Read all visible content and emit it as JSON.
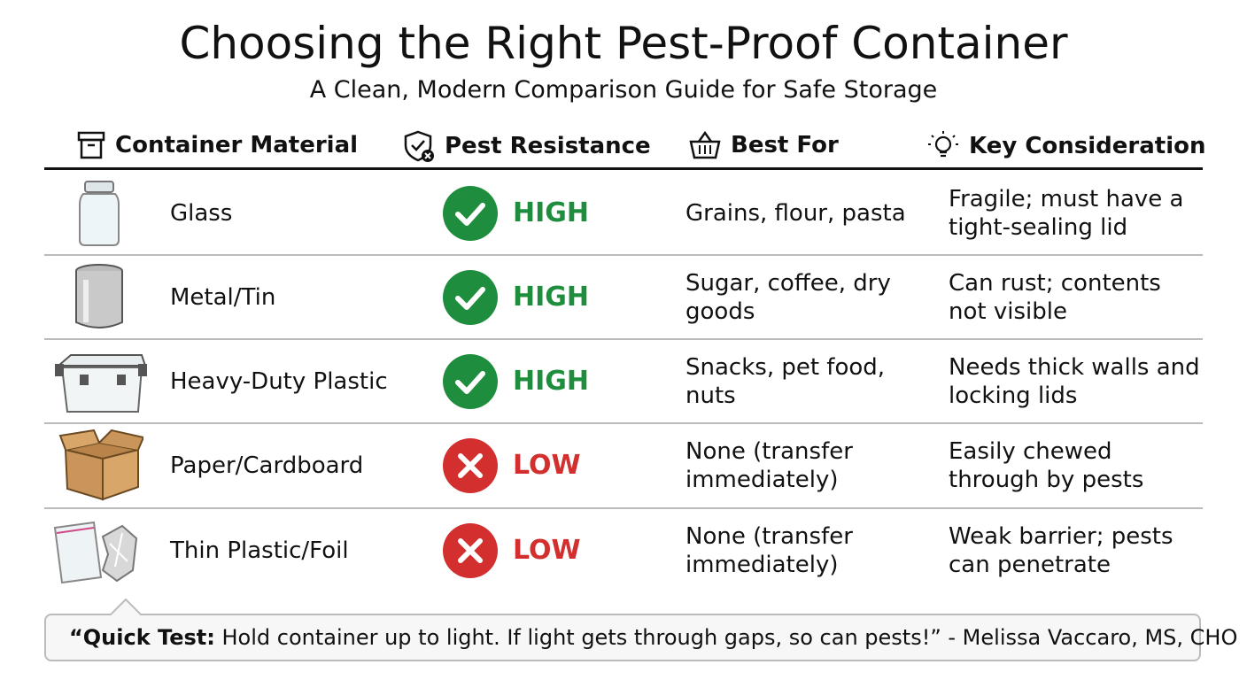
{
  "header": {
    "title": "Choosing the Right Pest-Proof Container",
    "subtitle": "A Clean, Modern Comparison Guide for Safe Storage"
  },
  "table": {
    "headers": [
      "Container Material",
      "Pest Resistance",
      "Best For",
      "Key Consideration"
    ],
    "rows": [
      [
        "Glass",
        "HIGH",
        "Grains, flour, pasta",
        "Fragile; must have a tight-sealing lid"
      ],
      [
        "Metal/Tin",
        "HIGH",
        "Sugar, coffee, dry goods",
        "Can rust; contents not visible"
      ],
      [
        "Heavy-Duty Plastic",
        "HIGH",
        "Snacks, pet food, nuts",
        "Needs thick walls and locking lids"
      ],
      [
        "Paper/Cardboard",
        "LOW",
        "None (transfer immediately)",
        "Easily chewed through by pests"
      ],
      [
        "Thin Plastic/Foil",
        "LOW",
        "None (transfer immediately)",
        "Weak barrier; pests can penetrate"
      ]
    ]
  },
  "tip": {
    "label": "“Quick Test:",
    "text": " Hold container up to light. If light gets through gaps, so can pests!” - Melissa Vaccaro, MS, CHO"
  }
}
